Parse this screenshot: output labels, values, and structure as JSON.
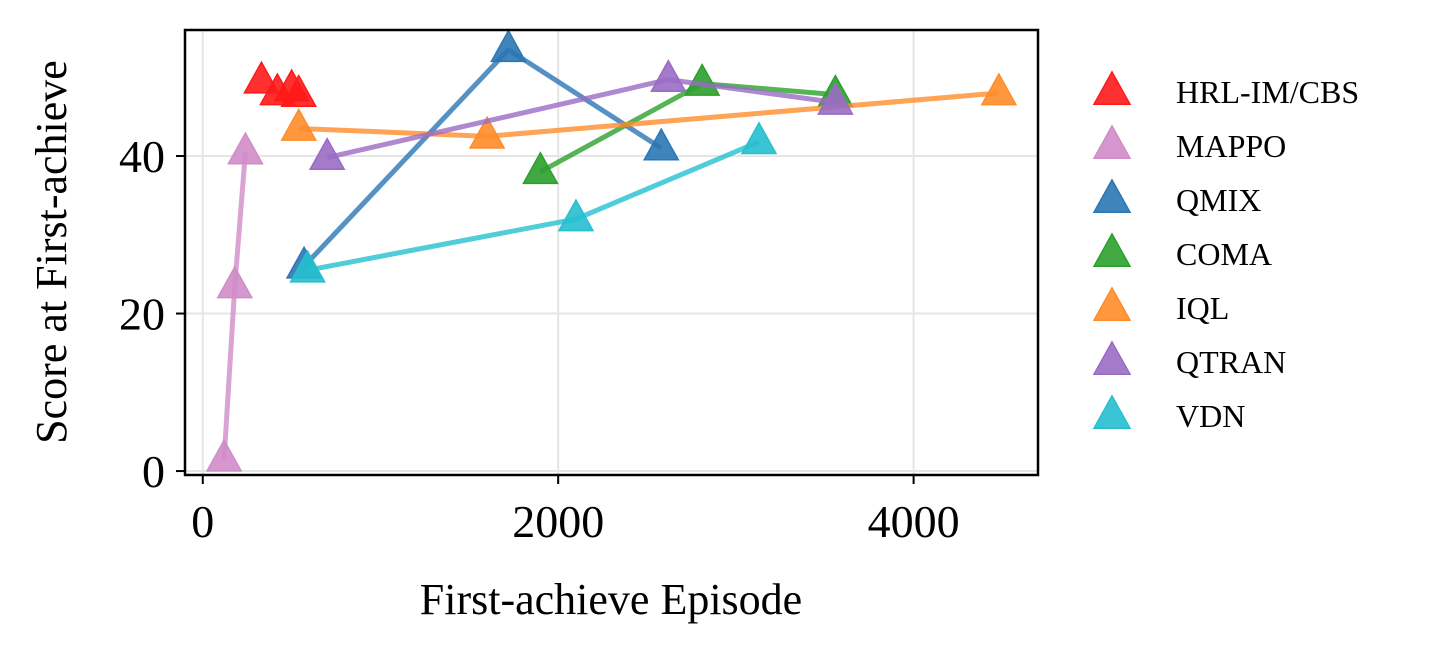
{
  "chart_data": {
    "type": "scatter",
    "xlabel": "First-achieve Episode",
    "ylabel": "Score at First-achieve",
    "xlim": [
      -100,
      4700
    ],
    "ylim": [
      -0.5,
      56
    ],
    "xticks": [
      0,
      2000,
      4000
    ],
    "yticks": [
      0,
      20,
      40
    ],
    "grid": true,
    "legend_position": "right-outside",
    "marker": "triangle",
    "series": [
      {
        "name": "HRL-IM/CBS",
        "color": "#ff1a1a",
        "connected": false,
        "points": [
          [
            330,
            49.5
          ],
          [
            420,
            48
          ],
          [
            500,
            48.5
          ],
          [
            540,
            47.8
          ]
        ]
      },
      {
        "name": "MAPPO",
        "color": "#d08cc8",
        "connected": true,
        "points": [
          [
            120,
            1.5
          ],
          [
            180,
            23.5
          ],
          [
            240,
            40.5
          ]
        ]
      },
      {
        "name": "QMIX",
        "color": "#2a77b4",
        "connected": true,
        "points": [
          [
            570,
            26
          ],
          [
            1720,
            53.5
          ],
          [
            2580,
            41
          ]
        ]
      },
      {
        "name": "COMA",
        "color": "#2ca02c",
        "connected": true,
        "points": [
          [
            1900,
            38
          ],
          [
            2810,
            49.2
          ],
          [
            3560,
            47.8
          ]
        ]
      },
      {
        "name": "IQL",
        "color": "#ff8c2a",
        "connected": true,
        "points": [
          [
            540,
            43.5
          ],
          [
            1600,
            42.5
          ],
          [
            4480,
            48
          ]
        ]
      },
      {
        "name": "QTRAN",
        "color": "#9a6bc4",
        "connected": true,
        "points": [
          [
            700,
            39.8
          ],
          [
            2620,
            49.7
          ],
          [
            3560,
            46.8
          ]
        ]
      },
      {
        "name": "VDN",
        "color": "#26bfcf",
        "connected": true,
        "points": [
          [
            590,
            25.5
          ],
          [
            2100,
            32
          ],
          [
            3130,
            41.8
          ]
        ]
      }
    ]
  }
}
